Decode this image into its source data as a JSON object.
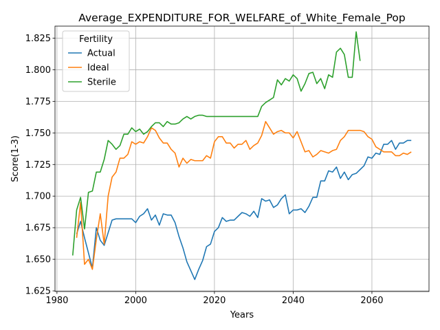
{
  "chart_data": {
    "type": "line",
    "title": "Average_EXPENDITURE_FOR_WELFARE_of_White_Female_Pop",
    "xlabel": "Years",
    "ylabel": "Score(1-3)",
    "xlim": [
      1979.5,
      2074.5
    ],
    "ylim": [
      1.6245,
      1.8345
    ],
    "xticks": [
      1980,
      2000,
      2020,
      2040,
      2060
    ],
    "yticks": [
      1.625,
      1.65,
      1.675,
      1.7,
      1.725,
      1.75,
      1.775,
      1.8,
      1.825
    ],
    "ytick_labels": [
      "1.625",
      "1.650",
      "1.675",
      "1.700",
      "1.725",
      "1.750",
      "1.775",
      "1.800",
      "1.825"
    ],
    "grid": true,
    "legend": {
      "title": "Fertility",
      "placement": "top-left"
    },
    "series": [
      {
        "name": "Actual",
        "color": "#1f77b4",
        "x": [
          1985,
          1986,
          1987,
          1988,
          1989,
          1990,
          1991,
          1992,
          1993,
          1994,
          1995,
          1996,
          1997,
          1998,
          1999,
          2000,
          2001,
          2002,
          2003,
          2004,
          2005,
          2006,
          2007,
          2008,
          2009,
          2010,
          2011,
          2012,
          2013,
          2014,
          2015,
          2016,
          2017,
          2018,
          2019,
          2020,
          2021,
          2022,
          2023,
          2024,
          2025,
          2026,
          2027,
          2028,
          2029,
          2030,
          2031,
          2032,
          2033,
          2034,
          2035,
          2036,
          2037,
          2038,
          2039,
          2040,
          2041,
          2042,
          2043,
          2044,
          2045,
          2046,
          2047,
          2048,
          2049,
          2050,
          2051,
          2052,
          2053,
          2054,
          2055,
          2056,
          2057,
          2058,
          2059,
          2060,
          2061,
          2062,
          2063,
          2064,
          2065,
          2066,
          2067,
          2068,
          2069,
          2070
        ],
        "values": [
          1.67,
          1.68,
          1.667,
          1.655,
          1.643,
          1.675,
          1.665,
          1.661,
          1.671,
          1.681,
          1.682,
          1.682,
          1.682,
          1.682,
          1.682,
          1.679,
          1.684,
          1.686,
          1.69,
          1.681,
          1.685,
          1.677,
          1.686,
          1.685,
          1.685,
          1.679,
          1.668,
          1.659,
          1.648,
          1.641,
          1.634,
          1.642,
          1.649,
          1.66,
          1.662,
          1.672,
          1.675,
          1.683,
          1.68,
          1.681,
          1.681,
          1.684,
          1.687,
          1.686,
          1.684,
          1.688,
          1.683,
          1.698,
          1.696,
          1.697,
          1.691,
          1.693,
          1.698,
          1.701,
          1.686,
          1.689,
          1.689,
          1.69,
          1.687,
          1.692,
          1.699,
          1.699,
          1.712,
          1.712,
          1.72,
          1.719,
          1.723,
          1.714,
          1.719,
          1.713,
          1.717,
          1.718,
          1.721,
          1.724,
          1.731,
          1.73,
          1.734,
          1.733,
          1.741,
          1.741,
          1.744,
          1.737,
          1.742,
          1.742,
          1.744,
          1.744
        ]
      },
      {
        "name": "Ideal",
        "color": "#ff7f0e",
        "x": [
          1985,
          1986,
          1987,
          1988,
          1989,
          1990,
          1991,
          1992,
          1993,
          1994,
          1995,
          1996,
          1997,
          1998,
          1999,
          2000,
          2001,
          2002,
          2003,
          2004,
          2005,
          2006,
          2007,
          2008,
          2009,
          2010,
          2011,
          2012,
          2013,
          2014,
          2015,
          2016,
          2017,
          2018,
          2019,
          2020,
          2021,
          2022,
          2023,
          2024,
          2025,
          2026,
          2027,
          2028,
          2029,
          2030,
          2031,
          2032,
          2033,
          2034,
          2035,
          2036,
          2037,
          2038,
          2039,
          2040,
          2041,
          2042,
          2043,
          2044,
          2045,
          2046,
          2047,
          2048,
          2049,
          2050,
          2051,
          2052,
          2053,
          2054,
          2055,
          2056,
          2057,
          2058,
          2059,
          2060,
          2061,
          2062,
          2063,
          2064,
          2065,
          2066,
          2067,
          2068,
          2069,
          2070
        ],
        "values": [
          1.667,
          1.695,
          1.646,
          1.65,
          1.642,
          1.666,
          1.686,
          1.662,
          1.7,
          1.715,
          1.719,
          1.73,
          1.73,
          1.733,
          1.743,
          1.741,
          1.743,
          1.742,
          1.747,
          1.754,
          1.752,
          1.746,
          1.742,
          1.742,
          1.737,
          1.734,
          1.723,
          1.73,
          1.726,
          1.729,
          1.728,
          1.728,
          1.728,
          1.732,
          1.73,
          1.743,
          1.747,
          1.747,
          1.742,
          1.742,
          1.738,
          1.741,
          1.741,
          1.744,
          1.737,
          1.74,
          1.742,
          1.748,
          1.759,
          1.754,
          1.749,
          1.751,
          1.752,
          1.75,
          1.75,
          1.746,
          1.751,
          1.743,
          1.735,
          1.736,
          1.731,
          1.733,
          1.736,
          1.735,
          1.734,
          1.736,
          1.737,
          1.744,
          1.747,
          1.752,
          1.752,
          1.752,
          1.752,
          1.751,
          1.747,
          1.745,
          1.739,
          1.737,
          1.735,
          1.735,
          1.735,
          1.732,
          1.732,
          1.734,
          1.733,
          1.735
        ]
      },
      {
        "name": "Sterile",
        "color": "#2ca02c",
        "x": [
          1984,
          1985,
          1986,
          1987,
          1988,
          1989,
          1990,
          1991,
          1992,
          1993,
          1994,
          1995,
          1996,
          1997,
          1998,
          1999,
          2000,
          2001,
          2002,
          2003,
          2004,
          2005,
          2006,
          2007,
          2008,
          2009,
          2010,
          2011,
          2012,
          2013,
          2014,
          2015,
          2016,
          2017,
          2018,
          2019,
          2020,
          2021,
          2022,
          2023,
          2024,
          2025,
          2026,
          2027,
          2028,
          2029,
          2030,
          2031,
          2032,
          2033,
          2034,
          2035,
          2036,
          2037,
          2038,
          2039,
          2040,
          2041,
          2042,
          2043,
          2044,
          2045,
          2046,
          2047,
          2048,
          2049,
          2050,
          2051,
          2052,
          2053,
          2054,
          2055,
          2056,
          2057
        ],
        "values": [
          1.653,
          1.689,
          1.699,
          1.674,
          1.703,
          1.704,
          1.719,
          1.719,
          1.729,
          1.744,
          1.741,
          1.737,
          1.74,
          1.749,
          1.749,
          1.754,
          1.751,
          1.753,
          1.749,
          1.751,
          1.755,
          1.758,
          1.758,
          1.755,
          1.759,
          1.757,
          1.757,
          1.758,
          1.761,
          1.763,
          1.761,
          1.763,
          1.764,
          1.764,
          1.763,
          1.763,
          1.763,
          1.763,
          1.763,
          1.763,
          1.763,
          1.763,
          1.763,
          1.763,
          1.763,
          1.763,
          1.763,
          1.763,
          1.771,
          1.774,
          1.776,
          1.778,
          1.792,
          1.788,
          1.793,
          1.791,
          1.796,
          1.793,
          1.783,
          1.789,
          1.797,
          1.798,
          1.789,
          1.793,
          1.785,
          1.796,
          1.794,
          1.814,
          1.817,
          1.812,
          1.794,
          1.794,
          1.83,
          1.807
        ]
      }
    ]
  }
}
